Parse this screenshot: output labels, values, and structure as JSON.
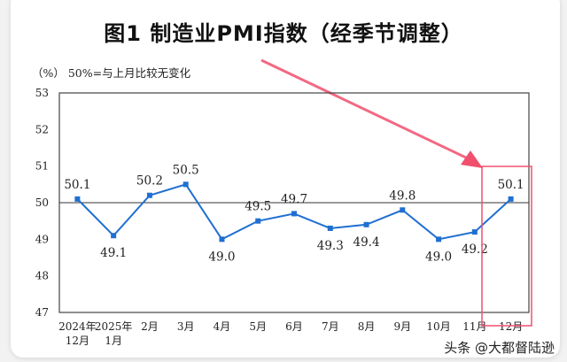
{
  "chart_data": {
    "type": "line",
    "title": "图1  制造业PMI指数（经季节调整）",
    "unit_note": "（%）  50%=与上月比较无变化",
    "categories": [
      [
        "2024年",
        "12月"
      ],
      [
        "2025年",
        "1月"
      ],
      [
        "2月"
      ],
      [
        "3月"
      ],
      [
        "4月"
      ],
      [
        "5月"
      ],
      [
        "6月"
      ],
      [
        "7月"
      ],
      [
        "8月"
      ],
      [
        "9月"
      ],
      [
        "10月"
      ],
      [
        "11月"
      ],
      [
        "12月"
      ]
    ],
    "values": [
      50.1,
      49.1,
      50.2,
      50.5,
      49.0,
      49.5,
      49.7,
      49.3,
      49.4,
      49.8,
      49.0,
      49.2,
      50.1
    ],
    "data_labels": [
      "50.1",
      "49.1",
      "50.2",
      "50.5",
      "49.0",
      "49.5",
      "49.7",
      "49.3",
      "49.4",
      "49.8",
      "49.0",
      "49.2",
      "50.1"
    ],
    "ylim": [
      47,
      53
    ],
    "yticks": [
      47,
      48,
      49,
      50,
      51,
      52,
      53
    ],
    "reference_line": 50,
    "grid": false,
    "line_color": "#1f6fd1",
    "annotation": {
      "highlight": "12月",
      "color": "#f0506e"
    }
  },
  "watermark": "头条 @大都督陆逊"
}
